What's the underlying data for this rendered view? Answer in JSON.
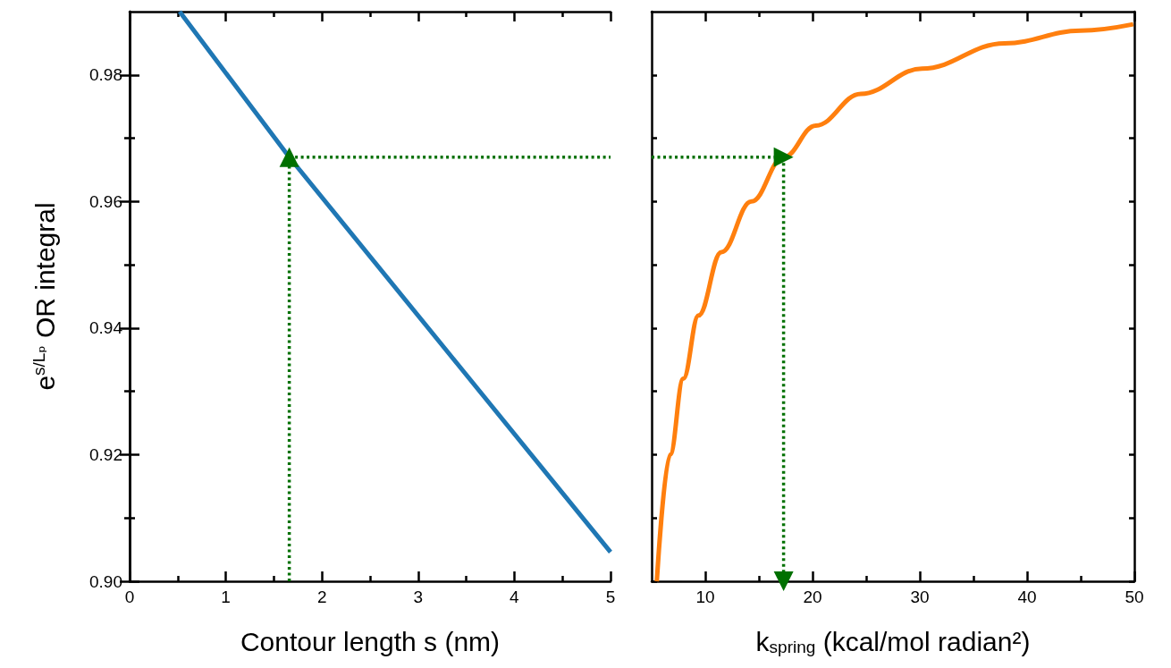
{
  "chart_data": [
    {
      "type": "line",
      "xlabel": "Contour length s (nm)",
      "ylabel": "e$^{s/Lₚ}$ OR integral",
      "xlim": [
        0,
        5
      ],
      "xticks": [
        0,
        {
          "value": 0.5,
          "label": null
        },
        1,
        {
          "value": 1.5,
          "label": null
        },
        2,
        {
          "value": 2.5,
          "label": null
        },
        3,
        {
          "value": 3.5,
          "label": null
        },
        4,
        {
          "value": 4.5,
          "label": null
        },
        5
      ],
      "ylim": [
        0.9,
        0.99
      ],
      "yticks": [
        {
          "value": 0.9,
          "label": "0.90"
        },
        {
          "value": 0.91,
          "label": null
        },
        0.92,
        {
          "value": 0.93,
          "label": null
        },
        0.94,
        {
          "value": 0.95,
          "label": null
        },
        0.96,
        {
          "value": 0.97,
          "label": null
        },
        0.98
      ],
      "series": [
        {
          "color": "#1f77b4",
          "x": [
            0.52,
            1.66,
            5
          ],
          "values": [
            0.99,
            0.967,
            0.9046
          ]
        },
        {
          "color": "#007000",
          "line_style": "dotted",
          "marker": "triangle",
          "x": [
            1.66,
            1.66
          ],
          "values": [
            0.9,
            0.967
          ]
        },
        {
          "color": "#007000",
          "line_style": "dotted",
          "marker": "none",
          "x": [
            1.66,
            5
          ],
          "values": [
            0.967,
            0.967
          ]
        }
      ]
    },
    {
      "type": "line",
      "xlabel": "k$_{spring}$ (kcal/mol radian²)",
      "tick_labels": "x",
      "xlim": [
        5,
        50
      ],
      "xticks": [
        10,
        {
          "value": 15,
          "label": null
        },
        20,
        {
          "value": 25,
          "label": null
        },
        30,
        {
          "value": 35,
          "label": null
        },
        40,
        {
          "value": 45,
          "label": null
        },
        50
      ],
      "ylim": [
        0.9,
        0.99
      ],
      "yticks": [
        {
          "value": 0.9,
          "label": null
        },
        {
          "value": 0.91,
          "label": null
        },
        {
          "value": 0.92,
          "label": null
        },
        {
          "value": 0.93,
          "label": null
        },
        {
          "value": 0.94,
          "label": null
        },
        {
          "value": 0.95,
          "label": null
        },
        {
          "value": 0.96,
          "label": null
        },
        {
          "value": 0.97,
          "label": null
        },
        {
          "value": 0.98,
          "label": null
        }
      ],
      "series": [
        {
          "color": "#ff7f0e",
          "x": [
            5.48,
            6.72,
            7.95,
            9.37,
            11.5,
            14.3,
            17.3,
            20.3,
            24.5,
            30.2,
            37.9,
            45.0,
            49.9
          ],
          "values": [
            0.9,
            0.92,
            0.932,
            0.942,
            0.952,
            0.96,
            0.967,
            0.972,
            0.977,
            0.981,
            0.985,
            0.987,
            0.988
          ]
        },
        {
          "color": "#007000",
          "line_style": "dotted",
          "marker": "triangle",
          "x": [
            5,
            17.3
          ],
          "values": [
            0.967,
            0.967
          ]
        },
        {
          "color": "#007000",
          "line_style": "dotted",
          "marker": "triangle",
          "x": [
            17.3,
            17.3
          ],
          "values": [
            0.967,
            0.9
          ]
        }
      ]
    }
  ]
}
